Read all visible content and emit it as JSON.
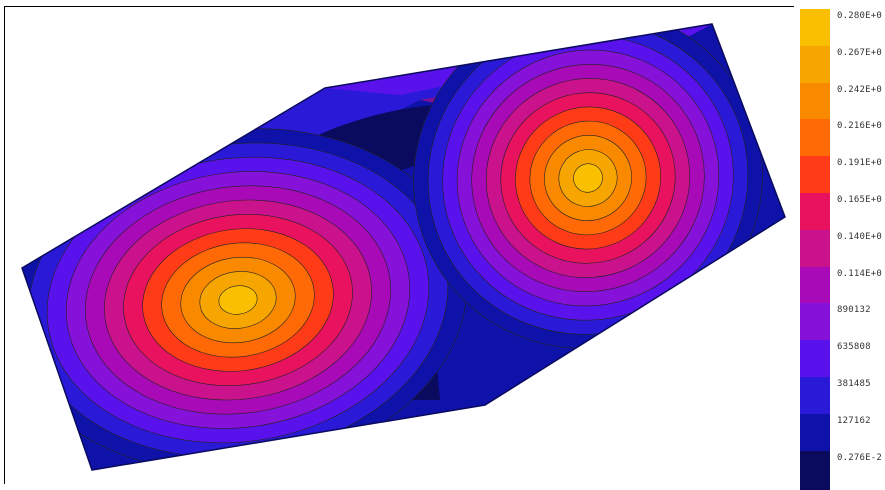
{
  "legend": {
    "labels": [
      "0.280E+0",
      "0.267E+0",
      "0.242E+0",
      "0.216E+0",
      "0.191E+0",
      "0.165E+0",
      "0.140E+0",
      "0.114E+0",
      "890132",
      "635808",
      "381485",
      "127162",
      "0.276E-2"
    ],
    "colors": [
      "#f9bf00",
      "#f7a500",
      "#f98a00",
      "#ff6a06",
      "#ff3b18",
      "#e8125f",
      "#c9128c",
      "#a80ab7",
      "#8611d8",
      "#5a12ec",
      "#2a1ad8",
      "#0e12a8",
      "#0a0a5e"
    ]
  }
}
